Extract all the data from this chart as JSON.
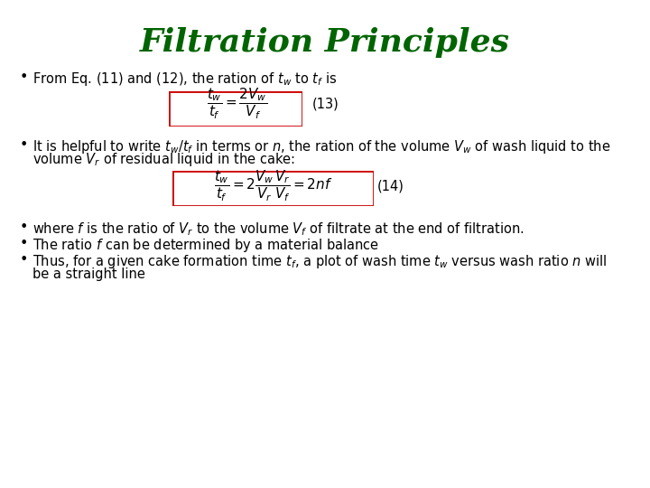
{
  "title": "Filtration Principles",
  "title_color": "#006400",
  "title_fontsize": 26,
  "title_style": "italic",
  "title_weight": "bold",
  "bg_color": "#ffffff",
  "bullet_color": "#000000",
  "text_fontsize": 10.5,
  "eq_fontsize": 11,
  "box_edge_color": "#cc0000",
  "bullet1": "From Eq. (11) and (12), the ration of $t_w$ to $t_f$ is",
  "eq13": "$\\dfrac{t_w}{t_f} = \\dfrac{2V_w}{V_f}$",
  "eq13_label": "(13)",
  "bullet2_part1": "It is helpful to write $t_w$/$t_f$ in terms or $n$, the ration of the volume $V_w$ of wash liquid to the",
  "bullet2_part2": "volume $V_r$ of residual liquid in the cake:",
  "eq14": "$\\dfrac{t_w}{t_f} = 2\\dfrac{V_w}{V_r}\\dfrac{V_r}{V_f} = 2nf$",
  "eq14_label": "(14)",
  "bullet3": "where $f$ is the ratio of $V_r$ to the volume $V_f$ of filtrate at the end of filtration.",
  "bullet4": "The ratio $f$ can be determined by a material balance",
  "bullet5_part1": "Thus, for a given cake formation time $t_f$, a plot of wash time $t_w$ versus wash ratio $n$ will",
  "bullet5_part2": "be a straight line"
}
